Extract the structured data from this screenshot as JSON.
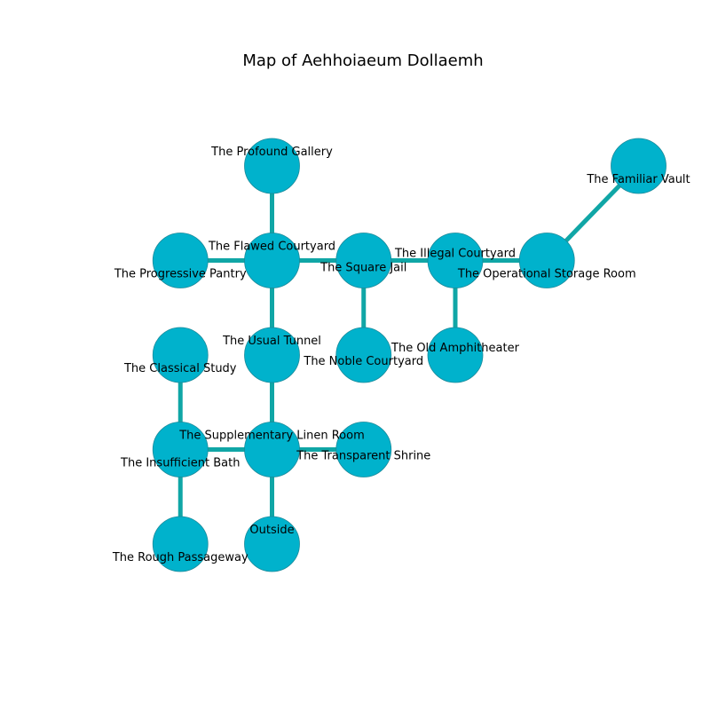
{
  "title": "Map of Aehhoiaeum Dollaemh",
  "colors": {
    "node_fill": "#00b2cc",
    "node_stroke": "#1a8a9a",
    "edge": "#10a6a6",
    "text": "#000000"
  },
  "rooms": [
    {
      "id": "profound-gallery",
      "name": "The Profound Gallery",
      "col": 2,
      "row": 0
    },
    {
      "id": "familiar-vault",
      "name": "The Familiar Vault",
      "col": 6,
      "row": 0
    },
    {
      "id": "progressive-pantry",
      "name": "The Progressive Pantry",
      "col": 1,
      "row": 1
    },
    {
      "id": "flawed-courtyard",
      "name": "The Flawed Courtyard",
      "col": 2,
      "row": 1
    },
    {
      "id": "square-jail",
      "name": "The Square Jail",
      "col": 3,
      "row": 1
    },
    {
      "id": "illegal-courtyard",
      "name": "The Illegal Courtyard",
      "col": 4,
      "row": 1
    },
    {
      "id": "operational-storage-room",
      "name": "The Operational Storage Room",
      "col": 5,
      "row": 1
    },
    {
      "id": "classical-study",
      "name": "The Classical Study",
      "col": 1,
      "row": 2
    },
    {
      "id": "usual-tunnel",
      "name": "The Usual Tunnel",
      "col": 2,
      "row": 2
    },
    {
      "id": "noble-courtyard",
      "name": "The Noble Courtyard",
      "col": 3,
      "row": 2
    },
    {
      "id": "old-amphitheater",
      "name": "The Old Amphitheater",
      "col": 4,
      "row": 2
    },
    {
      "id": "insufficient-bath",
      "name": "The Insufficient Bath",
      "col": 1,
      "row": 3
    },
    {
      "id": "supplementary-linen-room",
      "name": "The Supplementary Linen Room",
      "col": 2,
      "row": 3
    },
    {
      "id": "transparent-shrine",
      "name": "The Transparent Shrine",
      "col": 3,
      "row": 3
    },
    {
      "id": "rough-passageway",
      "name": "The Rough Passageway",
      "col": 1,
      "row": 4
    },
    {
      "id": "outside",
      "name": "Outside",
      "col": 2,
      "row": 4
    }
  ],
  "connections": [
    [
      "profound-gallery",
      "flawed-courtyard"
    ],
    [
      "familiar-vault",
      "operational-storage-room"
    ],
    [
      "progressive-pantry",
      "flawed-courtyard"
    ],
    [
      "flawed-courtyard",
      "square-jail"
    ],
    [
      "square-jail",
      "illegal-courtyard"
    ],
    [
      "illegal-courtyard",
      "operational-storage-room"
    ],
    [
      "flawed-courtyard",
      "usual-tunnel"
    ],
    [
      "square-jail",
      "noble-courtyard"
    ],
    [
      "illegal-courtyard",
      "old-amphitheater"
    ],
    [
      "usual-tunnel",
      "supplementary-linen-room"
    ],
    [
      "classical-study",
      "insufficient-bath"
    ],
    [
      "insufficient-bath",
      "supplementary-linen-room"
    ],
    [
      "supplementary-linen-room",
      "transparent-shrine"
    ],
    [
      "insufficient-bath",
      "rough-passageway"
    ],
    [
      "supplementary-linen-room",
      "outside"
    ]
  ]
}
